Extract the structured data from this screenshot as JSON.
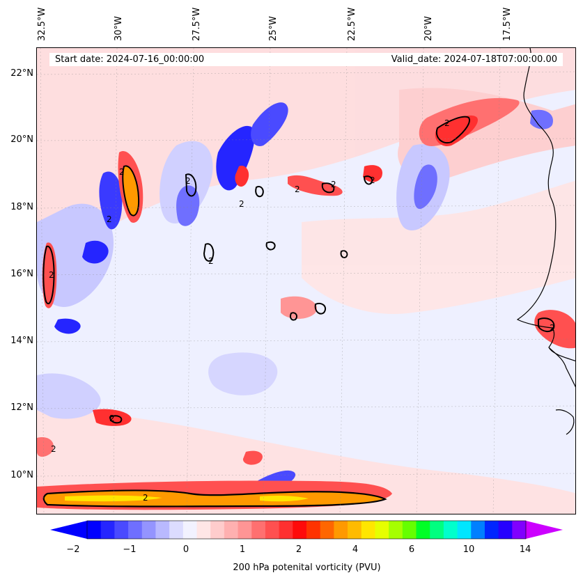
{
  "header": {
    "start_date": "Start date: 2024-07-16_00:00:00",
    "valid_date": "Valid_date: 2024-07-18T07:00:00.00"
  },
  "axes": {
    "longitude_labels": [
      "32.5°W",
      "30°W",
      "27.5°W",
      "25°W",
      "22.5°W",
      "20°W",
      "17.5°W"
    ],
    "latitude_labels": [
      "22°N",
      "20°N",
      "18°N",
      "16°N",
      "14°N",
      "12°N",
      "10°N"
    ]
  },
  "map": {
    "field": "200 hPa potential vorticity",
    "contour_level_label": "2",
    "contour_labels": [
      "2",
      "2",
      "2",
      "2",
      "2",
      "2",
      "2",
      "2",
      "2",
      "2",
      "2",
      "2",
      "2",
      "2"
    ]
  },
  "colorbar": {
    "label": "200 hPa potenital vorticity (PVU)",
    "tick_labels": [
      "−2",
      "−1",
      "0",
      "1",
      "2",
      "4",
      "6",
      "10",
      "14"
    ],
    "colors": [
      "#0000ff",
      "#2525ff",
      "#4a4aff",
      "#6f6fff",
      "#9494ff",
      "#b9b9ff",
      "#dcdcff",
      "#f2f2ff",
      "#ffe6e6",
      "#ffcccc",
      "#ffb0b0",
      "#ff9595",
      "#ff7070",
      "#ff5050",
      "#ff3030",
      "#ff0a0a",
      "#ff3300",
      "#ff6600",
      "#ff9900",
      "#ffbb00",
      "#ffe600",
      "#e6ff00",
      "#a6ff00",
      "#66ff00",
      "#00ff26",
      "#00ff80",
      "#00ffcc",
      "#00e6ff",
      "#0080ff",
      "#0026ff",
      "#2600ff",
      "#8000ff"
    ],
    "under_color": "#0000ff",
    "over_color": "#cc00ff"
  }
}
